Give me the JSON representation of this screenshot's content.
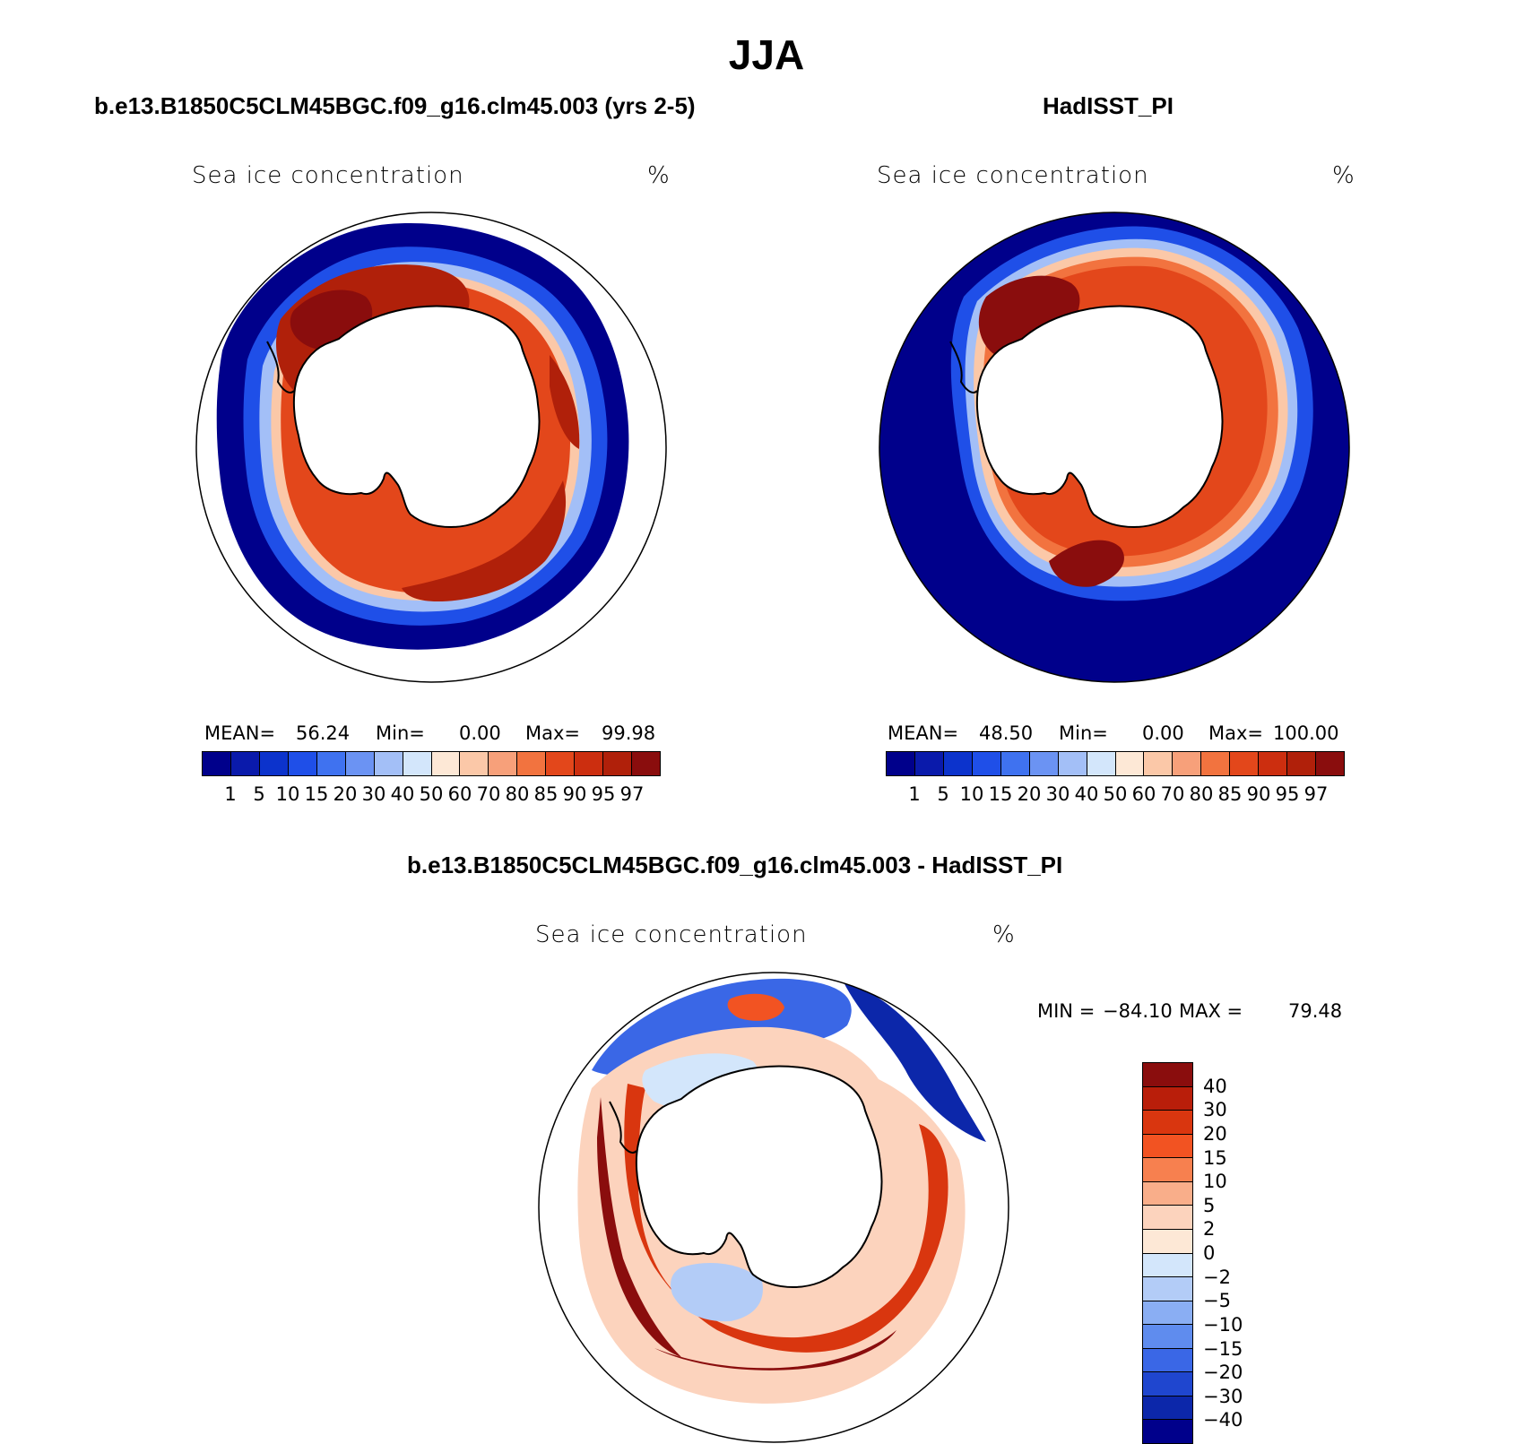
{
  "figure": {
    "title": "JJA"
  },
  "panels": [
    {
      "id": "model",
      "title": "b.e13.B1850C5CLM45BGC.f09_g16.clm45.003 (yrs 2-5)",
      "variable": "Sea ice concentration",
      "units": "%",
      "stats": {
        "mean_label": "MEAN=",
        "mean": "56.24",
        "min_label": "Min=",
        "min": "0.00",
        "max_label": "Max=",
        "max": "99.98"
      }
    },
    {
      "id": "obs",
      "title": "HadISST_PI",
      "variable": "Sea ice concentration",
      "units": "%",
      "stats": {
        "mean_label": "MEAN=",
        "mean": "48.50",
        "min_label": "Min=",
        "min": "0.00",
        "max_label": "Max=",
        "max": "100.00"
      }
    },
    {
      "id": "diff",
      "title": "b.e13.B1850C5CLM45BGC.f09_g16.clm45.003 - HadISST_PI",
      "variable": "Sea ice concentration",
      "units": "%",
      "stats": {
        "min_label": "MIN =",
        "min": "−84.10",
        "max_label": "MAX =",
        "max": "79.48"
      }
    }
  ],
  "colorbar_main": {
    "levels": [
      "1",
      "5",
      "10",
      "15",
      "20",
      "30",
      "40",
      "50",
      "60",
      "70",
      "80",
      "85",
      "90",
      "95",
      "97"
    ],
    "colors": [
      "#00008b",
      "#0a1aab",
      "#0c33cc",
      "#1f4fe8",
      "#3f72f0",
      "#6b93f3",
      "#a3bff7",
      "#d3e6fb",
      "#fde8d6",
      "#fbc8a8",
      "#f7a07a",
      "#f2733f",
      "#e3471b",
      "#cc2e0f",
      "#b0200a",
      "#8a0d0d"
    ]
  },
  "colorbar_diff": {
    "levels": [
      "40",
      "30",
      "20",
      "15",
      "10",
      "5",
      "2",
      "0",
      "−2",
      "−5",
      "−10",
      "−15",
      "−20",
      "−30",
      "−40"
    ],
    "colors": [
      "#8a0d0d",
      "#b91e0a",
      "#d9360f",
      "#f25322",
      "#f7804f",
      "#f9ae8a",
      "#fcd3bd",
      "#fde8d6",
      "#d3e6fb",
      "#b3ccf7",
      "#8aaef3",
      "#5f8cee",
      "#3a67e6",
      "#1f46cf",
      "#0c27aa",
      "#00008b"
    ]
  }
}
